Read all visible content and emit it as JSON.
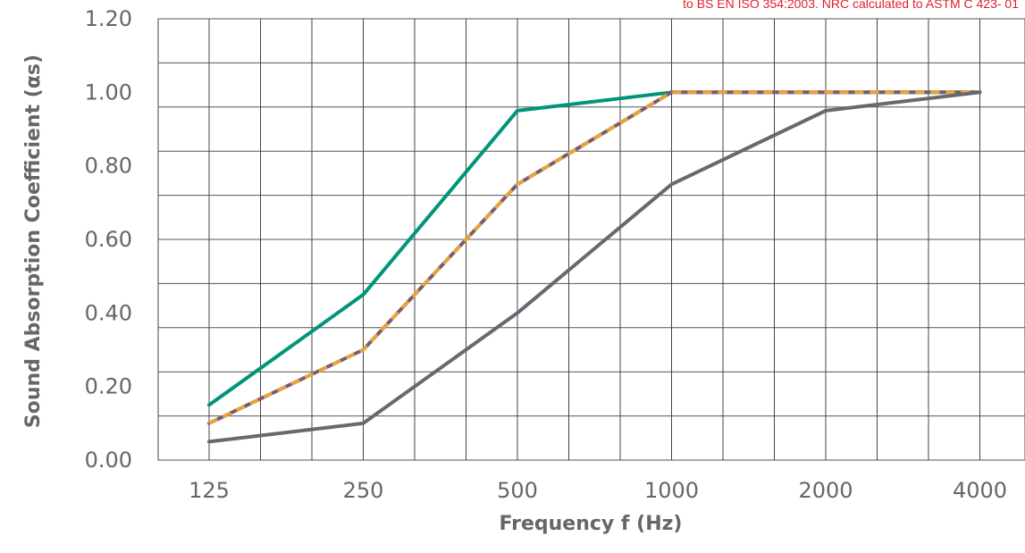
{
  "note": {
    "text": "to BS EN ISO 354:2003. NRC calculated to ASTM C 423- 01",
    "color": "#e0202e"
  },
  "chart_data": {
    "type": "line",
    "title": "",
    "xlabel": "Frequency f (Hz)",
    "ylabel": "Sound Absorption Coefficient (αs)",
    "categories": [
      "125",
      "250",
      "500",
      "1000",
      "2000",
      "4000"
    ],
    "y_ticks": [
      "0.00",
      "0.20",
      "0.40",
      "0.60",
      "0.80",
      "1.00",
      "1.20"
    ],
    "ylim": [
      0,
      1.2
    ],
    "grid": true,
    "series": [
      {
        "values": [
          0.15,
          0.45,
          0.95,
          1.0,
          1.0,
          1.0
        ],
        "color": "#00957a",
        "style": "solid"
      },
      {
        "values": [
          0.1,
          0.3,
          0.75,
          1.0,
          1.0,
          1.0
        ],
        "color": "#7b5c6f",
        "style": "solid"
      },
      {
        "values": [
          0.1,
          0.3,
          0.75,
          1.0,
          1.0,
          1.0
        ],
        "color": "#e8a33c",
        "style": "dashed"
      },
      {
        "values": [
          0.05,
          0.1,
          0.4,
          0.75,
          0.95,
          1.0
        ],
        "color": "#636a70",
        "style": "solid"
      }
    ]
  }
}
